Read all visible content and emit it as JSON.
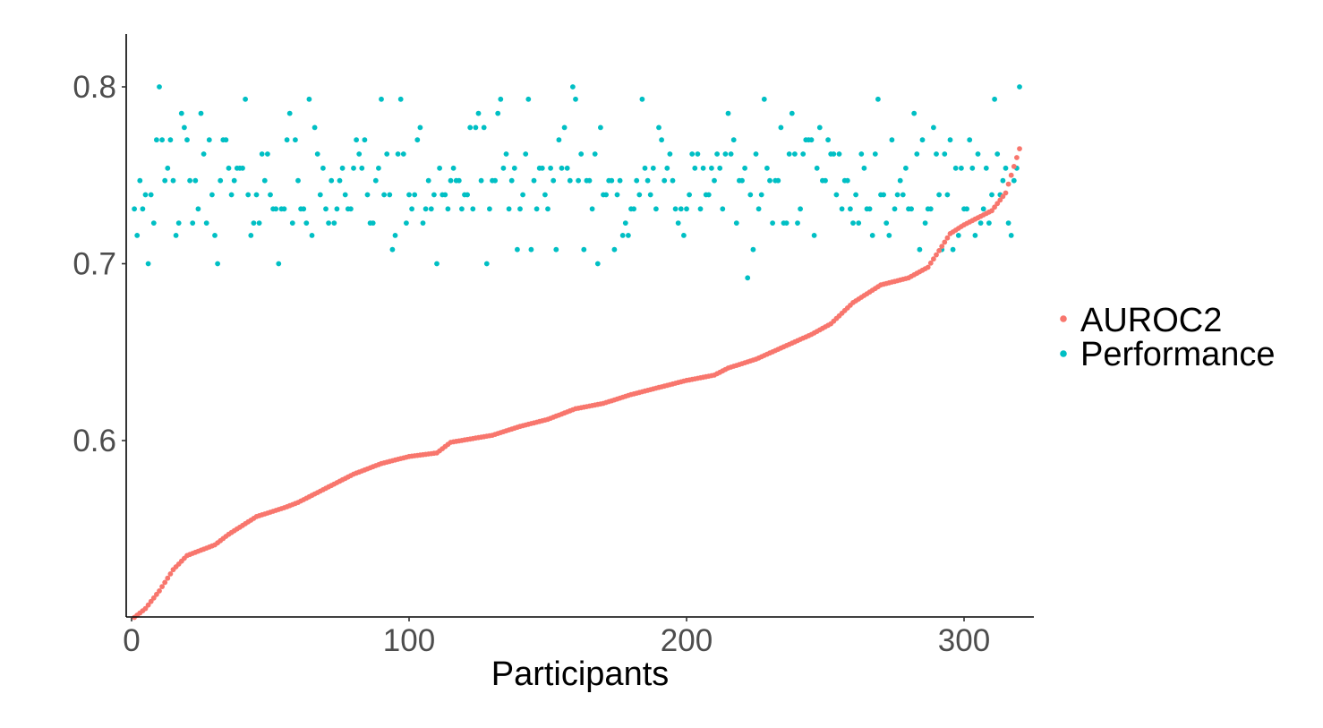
{
  "chart_data": {
    "type": "scatter",
    "title": "",
    "xlabel": "Participants",
    "ylabel": "",
    "xlim": [
      -2,
      322
    ],
    "ylim": [
      0.5,
      0.83
    ],
    "x_ticks": [
      0,
      100,
      200,
      300
    ],
    "y_ticks": [
      0.6,
      0.7,
      0.8
    ],
    "x_tick_labels": [
      "0",
      "100",
      "200",
      "300"
    ],
    "y_tick_labels": [
      "0.6",
      "0.7",
      "0.8"
    ],
    "grid": false,
    "legend_position": "right",
    "n_participants": 320,
    "series": [
      {
        "name": "AUROC2",
        "color": "#F8766D",
        "shape": "sorted-increasing",
        "anchors": [
          [
            1,
            0.5
          ],
          [
            5,
            0.505
          ],
          [
            10,
            0.515
          ],
          [
            15,
            0.527
          ],
          [
            20,
            0.535
          ],
          [
            30,
            0.541
          ],
          [
            35,
            0.547
          ],
          [
            45,
            0.557
          ],
          [
            55,
            0.562
          ],
          [
            60,
            0.565
          ],
          [
            70,
            0.573
          ],
          [
            80,
            0.581
          ],
          [
            90,
            0.587
          ],
          [
            100,
            0.591
          ],
          [
            110,
            0.593
          ],
          [
            115,
            0.599
          ],
          [
            130,
            0.603
          ],
          [
            140,
            0.608
          ],
          [
            150,
            0.612
          ],
          [
            160,
            0.618
          ],
          [
            170,
            0.621
          ],
          [
            180,
            0.626
          ],
          [
            190,
            0.63
          ],
          [
            200,
            0.634
          ],
          [
            210,
            0.637
          ],
          [
            215,
            0.641
          ],
          [
            225,
            0.646
          ],
          [
            235,
            0.653
          ],
          [
            245,
            0.66
          ],
          [
            252,
            0.666
          ],
          [
            260,
            0.678
          ],
          [
            270,
            0.688
          ],
          [
            280,
            0.692
          ],
          [
            287,
            0.698
          ],
          [
            290,
            0.705
          ],
          [
            295,
            0.717
          ],
          [
            300,
            0.722
          ],
          [
            310,
            0.73
          ],
          [
            315,
            0.74
          ],
          [
            320,
            0.765
          ]
        ]
      },
      {
        "name": "Performance",
        "color": "#00BFC4",
        "mean": 0.74,
        "levels": [
          0.692,
          0.7,
          0.708,
          0.716,
          0.723,
          0.731,
          0.739,
          0.747,
          0.754,
          0.762,
          0.77,
          0.777,
          0.785,
          0.793,
          0.8
        ],
        "weights": [
          1,
          2,
          3,
          6,
          10,
          14,
          16,
          14,
          12,
          9,
          7,
          5,
          3,
          2,
          1
        ]
      }
    ],
    "legend": [
      {
        "label": "AUROC2",
        "color": "#F8766D"
      },
      {
        "label": "Performance",
        "color": "#00BFC4"
      }
    ]
  }
}
